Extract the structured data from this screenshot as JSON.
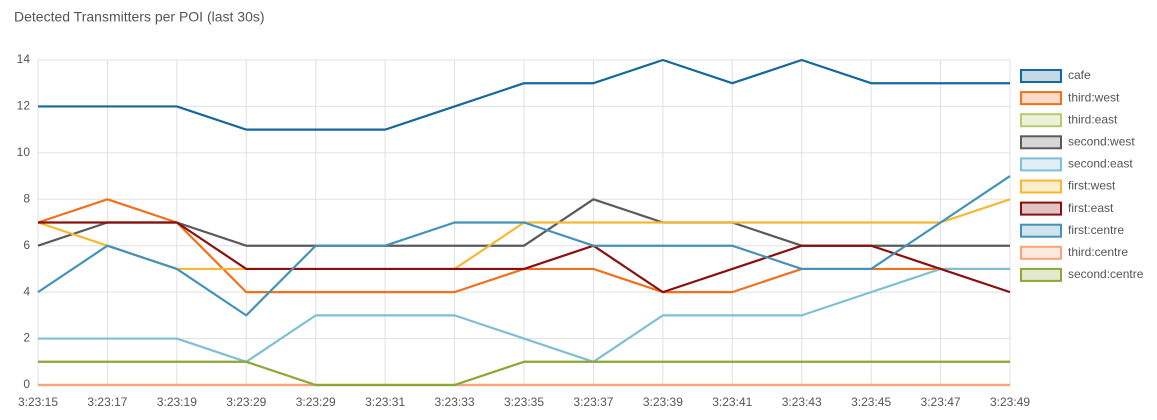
{
  "chart_data": {
    "type": "line",
    "title": "Detected Transmitters per POI (last 30s)",
    "categories": [
      "3:23:15",
      "3:23:17",
      "3:23:19",
      "3:23:29",
      "3:23:29",
      "3:23:31",
      "3:23:33",
      "3:23:35",
      "3:23:37",
      "3:23:39",
      "3:23:41",
      "3:23:43",
      "3:23:45",
      "3:23:47",
      "3:23:49"
    ],
    "ylim": [
      0,
      14
    ],
    "yticks": [
      0,
      2,
      4,
      6,
      8,
      10,
      12,
      14
    ],
    "grid": true,
    "legend": "right",
    "series": [
      {
        "name": "cafe",
        "color": "#15699a",
        "values": [
          12,
          12,
          12,
          11,
          11,
          11,
          12,
          13,
          13,
          14,
          13,
          14,
          13,
          13,
          13
        ]
      },
      {
        "name": "third:west",
        "color": "#f0701e",
        "values": [
          7,
          8,
          7,
          4,
          4,
          4,
          4,
          5,
          5,
          4,
          4,
          5,
          5,
          5,
          5
        ]
      },
      {
        "name": "third:east",
        "color": "#b5cc6a",
        "values": [
          0,
          0,
          0,
          0,
          0,
          0,
          0,
          0,
          0,
          0,
          0,
          0,
          0,
          0,
          0
        ]
      },
      {
        "name": "second:west",
        "color": "#5a5a5a",
        "values": [
          6,
          7,
          7,
          6,
          6,
          6,
          6,
          6,
          8,
          7,
          7,
          6,
          6,
          6,
          6
        ]
      },
      {
        "name": "second:east",
        "color": "#7fbfd6",
        "values": [
          2,
          2,
          2,
          1,
          3,
          3,
          3,
          2,
          1,
          3,
          3,
          3,
          4,
          5,
          5
        ]
      },
      {
        "name": "first:west",
        "color": "#f6b832",
        "values": [
          7,
          6,
          5,
          5,
          5,
          5,
          5,
          7,
          7,
          7,
          7,
          7,
          7,
          7,
          8
        ]
      },
      {
        "name": "first:east",
        "color": "#8a1010",
        "values": [
          7,
          7,
          7,
          5,
          5,
          5,
          5,
          5,
          6,
          4,
          5,
          6,
          6,
          5,
          4
        ]
      },
      {
        "name": "first:centre",
        "color": "#4592b8",
        "values": [
          4,
          6,
          5,
          3,
          6,
          6,
          7,
          7,
          6,
          6,
          6,
          5,
          5,
          7,
          9
        ]
      },
      {
        "name": "third:centre",
        "color": "#f7a57a",
        "values": [
          0,
          0,
          0,
          0,
          0,
          0,
          0,
          0,
          0,
          0,
          0,
          0,
          0,
          0,
          0
        ]
      },
      {
        "name": "second:centre",
        "color": "#8aa832",
        "values": [
          1,
          1,
          1,
          1,
          0,
          0,
          0,
          1,
          1,
          1,
          1,
          1,
          1,
          1,
          1
        ]
      }
    ]
  }
}
